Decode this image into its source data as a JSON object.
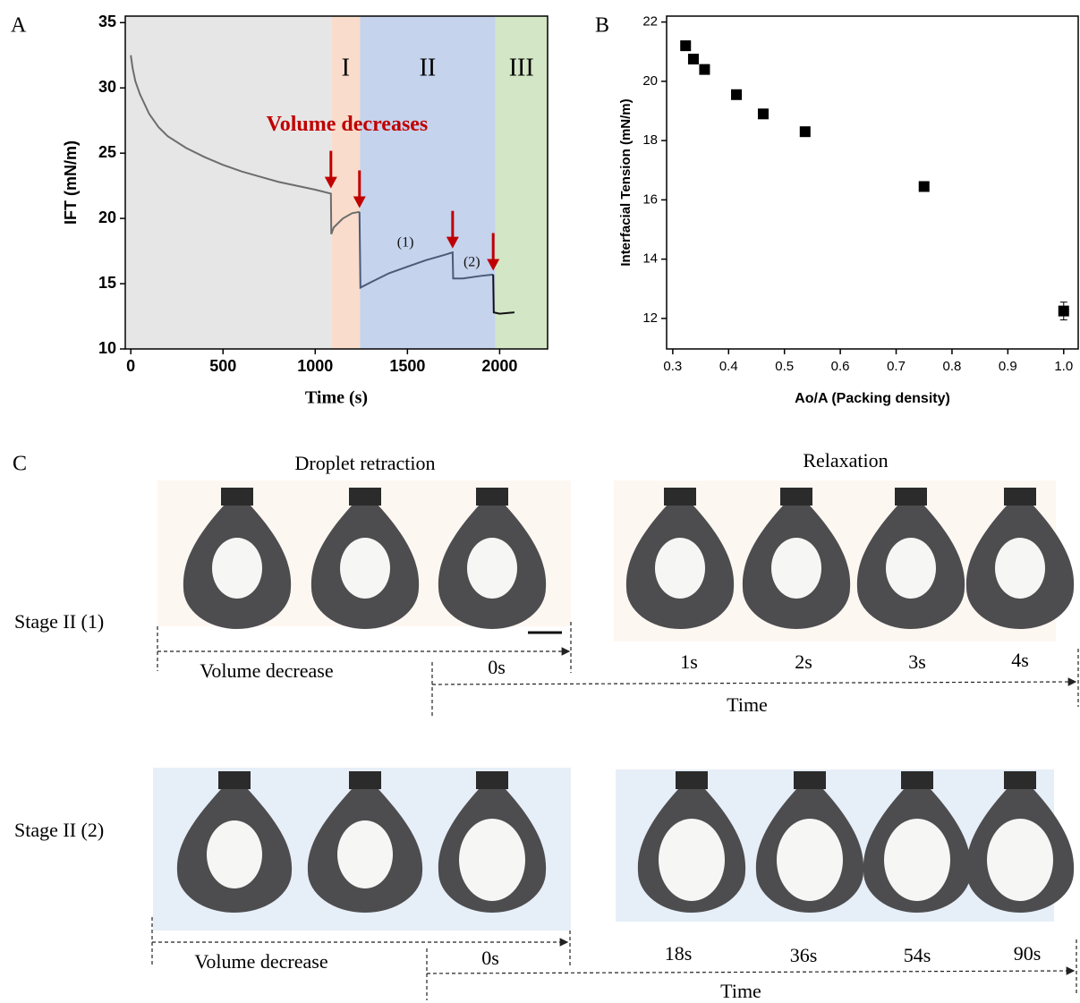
{
  "panels": {
    "a": "A",
    "b": "B",
    "c": "C"
  },
  "chart_data": [
    {
      "type": "line",
      "xlabel": "Time (s)",
      "ylabel": "IFT (mN/m)",
      "xlim": [
        -30,
        2260
      ],
      "ylim": [
        10,
        35.5
      ],
      "xticks": [
        0,
        500,
        1000,
        1500,
        2000
      ],
      "yticks": [
        10,
        15,
        20,
        25,
        30,
        35
      ],
      "regions": [
        {
          "start": -30,
          "end": 1087,
          "color": "#e6e6e6"
        },
        {
          "start": 1087,
          "end": 1243,
          "color": "#f9dccb",
          "label": "I"
        },
        {
          "start": 1243,
          "end": 1976,
          "color": "#c5d3ec",
          "label": "II"
        },
        {
          "start": 1976,
          "end": 2260,
          "color": "#d3e6c5",
          "label": "III"
        }
      ],
      "series": [
        {
          "color": "#6d6d6d",
          "x": [
            0,
            10,
            25,
            50,
            100,
            150,
            200,
            300,
            400,
            500,
            600,
            700,
            800,
            900,
            1000,
            1085,
            1087,
            1100,
            1150,
            1200,
            1240
          ],
          "values": [
            32.5,
            31.5,
            30.5,
            29.5,
            28.0,
            27.0,
            26.3,
            25.4,
            24.7,
            24.1,
            23.6,
            23.2,
            22.8,
            22.5,
            22.2,
            21.9,
            18.8,
            19.3,
            20.0,
            20.4,
            20.5
          ]
        },
        {
          "color": "#4a5a78",
          "x": [
            1240,
            1245,
            1300,
            1400,
            1500,
            1600,
            1700,
            1745,
            1748,
            1800,
            1900,
            1965
          ],
          "values": [
            20.5,
            14.7,
            15.1,
            15.8,
            16.3,
            16.8,
            17.2,
            17.4,
            15.4,
            15.4,
            15.6,
            15.7
          ]
        },
        {
          "color": "#111111",
          "x": [
            1965,
            1968,
            2000,
            2080
          ],
          "values": [
            15.7,
            12.8,
            12.7,
            12.8
          ]
        }
      ],
      "arrow_color": "#c00000",
      "arrows": [
        {
          "x": 1085,
          "y": 22.3
        },
        {
          "x": 1240,
          "y": 20.8
        },
        {
          "x": 1745,
          "y": 17.7
        },
        {
          "x": 1965,
          "y": 16.0
        }
      ],
      "annotations": [
        {
          "text": "Volume decreases",
          "x": 1173,
          "y": 27.1,
          "color": "#c00000"
        },
        {
          "text": "(1)",
          "x": 1489,
          "y": 18.1,
          "color": "#111111"
        },
        {
          "text": "(2)",
          "x": 1849,
          "y": 16.6,
          "color": "#111111"
        }
      ]
    },
    {
      "type": "scatter",
      "xlabel": "Ao/A (Packing density)",
      "ylabel": "Interfacial Tension (mN/m)",
      "xlim": [
        0.289,
        1.026
      ],
      "ylim": [
        10.97,
        22.2
      ],
      "xticks": [
        0.3,
        0.4,
        0.5,
        0.6,
        0.7,
        0.8,
        0.9,
        {
          "value": 1.0,
          "label": "1.0"
        }
      ],
      "yticks": [
        12,
        14,
        16,
        18,
        20,
        22
      ],
      "color": "#000000",
      "x": [
        0.323,
        0.337,
        0.357,
        0.414,
        0.462,
        0.537,
        0.75,
        1.0
      ],
      "values": [
        21.2,
        20.75,
        20.4,
        19.55,
        18.9,
        18.3,
        16.45,
        12.25
      ],
      "errors": [
        null,
        null,
        null,
        null,
        null,
        null,
        null,
        0.3
      ]
    }
  ],
  "panel_c": {
    "headings": [
      "Droplet retraction",
      "Relaxation"
    ],
    "rows": [
      {
        "stage": "Stage II (1)",
        "volume_label": "Volume decrease",
        "time_label": "Time",
        "times": [
          "0s",
          "1s",
          "2s",
          "3s",
          "4s"
        ]
      },
      {
        "stage": "Stage II (2)",
        "volume_label": "Volume decrease",
        "time_label": "Time",
        "times": [
          "0s",
          "18s",
          "36s",
          "54s",
          "90s"
        ]
      }
    ]
  }
}
